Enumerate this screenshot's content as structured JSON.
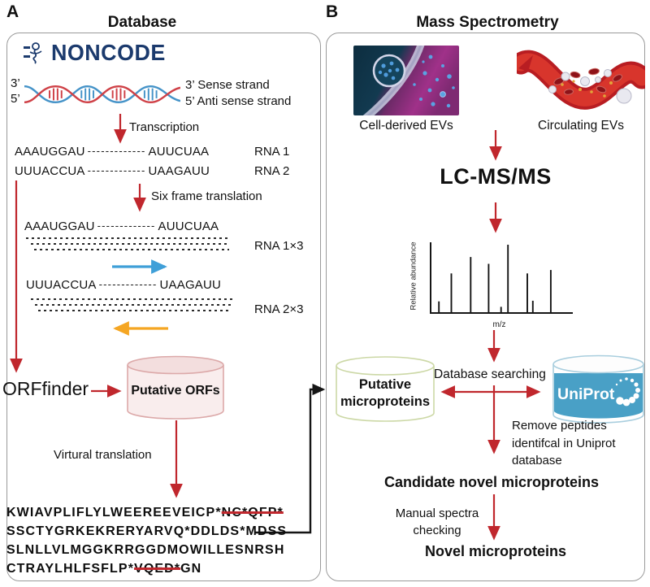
{
  "panel_a": {
    "label": "A",
    "title": "Database",
    "noncode_logo_text": "NONCODE",
    "dna": {
      "left_top": "3’",
      "left_bottom": "5’",
      "right_top": "3’ Sense strand",
      "right_bottom": "5’ Anti sense strand"
    },
    "transcription_label": "Transcription",
    "rna1": {
      "start": "AAAUGGAU",
      "dashes": "-------------",
      "end": "AUUCUAA",
      "label": "RNA 1"
    },
    "rna2": {
      "start": "UUUACCUA",
      "dashes": "-------------",
      "end": "UAAGAUU",
      "label": "RNA 2"
    },
    "six_frame_label": "Six frame translation",
    "frame1": {
      "start": "AAAUGGAU",
      "dashes": "-------------",
      "end": "AUUCUAA",
      "label": "RNA 1×3"
    },
    "frame2": {
      "start": "UUUACCUA",
      "dashes": "-------------",
      "end": "UAAGAUU",
      "label": "RNA 2×3"
    },
    "orffinder_label": "ORFfinder",
    "putative_orfs_label": "Putative ORFs",
    "virtual_translation_label": "Virtural translation",
    "protein": {
      "line1_pre": "KWIAVPLIFLYLWEEREEVEICP*",
      "line1_struck": "NC*QFP*",
      "line2": "SSCTYGRKEKRERYARVQ*DDLDS*MDSS",
      "line3": "SLNLLVLMGGKRRGGDMOWILLESNRSH",
      "line4_pre": "CTRAYLHLFSFLP*",
      "line4_struck": "VQED*",
      "line4_post": "GN"
    }
  },
  "panel_b": {
    "label": "B",
    "title": "Mass Spectrometry",
    "cell_evs_label": "Cell-derived EVs",
    "circulating_evs_label": "Circulating EVs",
    "lcmsms_label": "LC-MS/MS",
    "spectrum": {
      "ylabel": "Relative abundance",
      "xlabel": "m/z"
    },
    "putative_microproteins_label": "Putative microproteins",
    "database_searching_label": "Database searching",
    "uniprot_label": "UniProt",
    "remove_peptides_label": "Remove peptides identifcal in Uniprot database",
    "candidate_label": "Candidate novel microproteins",
    "manual_checking_label": "Manual spectra checking",
    "novel_label": "Novel microproteins"
  },
  "chart_data": {
    "type": "bar",
    "title": "",
    "xlabel": "m/z",
    "ylabel": "Relative abundance",
    "x_relative": [
      0.06,
      0.15,
      0.29,
      0.42,
      0.51,
      0.56,
      0.7,
      0.74,
      0.87
    ],
    "values_relative": [
      0.17,
      0.58,
      0.82,
      0.72,
      0.09,
      1.0,
      0.58,
      0.18,
      0.63
    ],
    "ylim": [
      0,
      1
    ],
    "grid": false
  },
  "colors": {
    "arrow_red": "#c0272d",
    "arrow_blue": "#3f9fd8",
    "arrow_orange": "#f5a623",
    "noncode_navy": "#1b3a6d",
    "uniprot_blue": "#49a0c6",
    "orfs_cylinder_fill": "#f9eded",
    "orfs_cylinder_stroke": "#dca9a9",
    "microproteins_cylinder_stroke": "#ccd8a6",
    "dna_red": "#cf4147",
    "dna_blue": "#4593c8"
  }
}
